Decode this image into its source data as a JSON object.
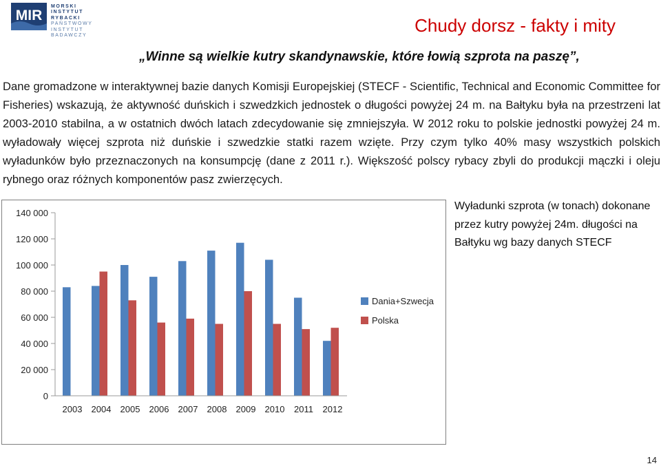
{
  "logo": {
    "mark": "MIR",
    "lines": [
      "MORSKI",
      "INSTYTUT",
      "RYBACKI",
      "PAŃSTWOWY",
      "INSTYTUT",
      "BADAWCZY"
    ]
  },
  "header": {
    "title": "Chudy dorsz  - fakty i mity",
    "subtitle": "„Winne są wielkie kutry skandynawskie, które łowią szprota na paszę”,"
  },
  "body": {
    "paragraph": "Dane gromadzone w interaktywnej bazie danych Komisji Europejskiej (STECF - Scientific, Technical and Economic Committee for Fisheries) wskazują, że aktywność duńskich i szwedzkich jednostek o długości powyżej 24 m. na Bałtyku była na przestrzeni lat 2003-2010 stabilna, a w ostatnich dwóch latach zdecydowanie się zmniejszyła. W 2012 roku to polskie jednostki powyżej 24 m. wyładowały więcej szprota niż duńskie i szwedzkie statki razem wzięte. Przy czym tylko 40% masy wszystkich polskich wyładunków było przeznaczonych na konsumpcję (dane z 2011 r.). Większość polscy rybacy zbyli do produkcji mączki i oleju rybnego oraz różnych komponentów pasz zwierzęcych."
  },
  "chart_note": "Wyładunki szprota (w tonach) dokonane przez kutry powyżej 24m. długości na Bałtyku wg bazy danych STECF",
  "page_number": "14",
  "colors": {
    "title": "#cc0000",
    "series1": "#4f81bd",
    "series2": "#c0504d"
  },
  "chart_data": {
    "type": "bar",
    "categories": [
      "2003",
      "2004",
      "2005",
      "2006",
      "2007",
      "2008",
      "2009",
      "2010",
      "2011",
      "2012"
    ],
    "series": [
      {
        "name": "Dania+Szwecja",
        "color": "#4f81bd",
        "values": [
          83000,
          84000,
          100000,
          91000,
          103000,
          111000,
          117000,
          104000,
          75000,
          42000
        ]
      },
      {
        "name": "Polska",
        "color": "#c0504d",
        "values": [
          null,
          95000,
          73000,
          56000,
          59000,
          55000,
          80000,
          55000,
          51000,
          52000
        ]
      }
    ],
    "yticks": [
      "140 000",
      "120 000",
      "100 000",
      "80 000",
      "60 000",
      "40 000",
      "20 000",
      "0"
    ],
    "ylim": [
      0,
      140000
    ],
    "legend_position": "right",
    "grid": false
  }
}
